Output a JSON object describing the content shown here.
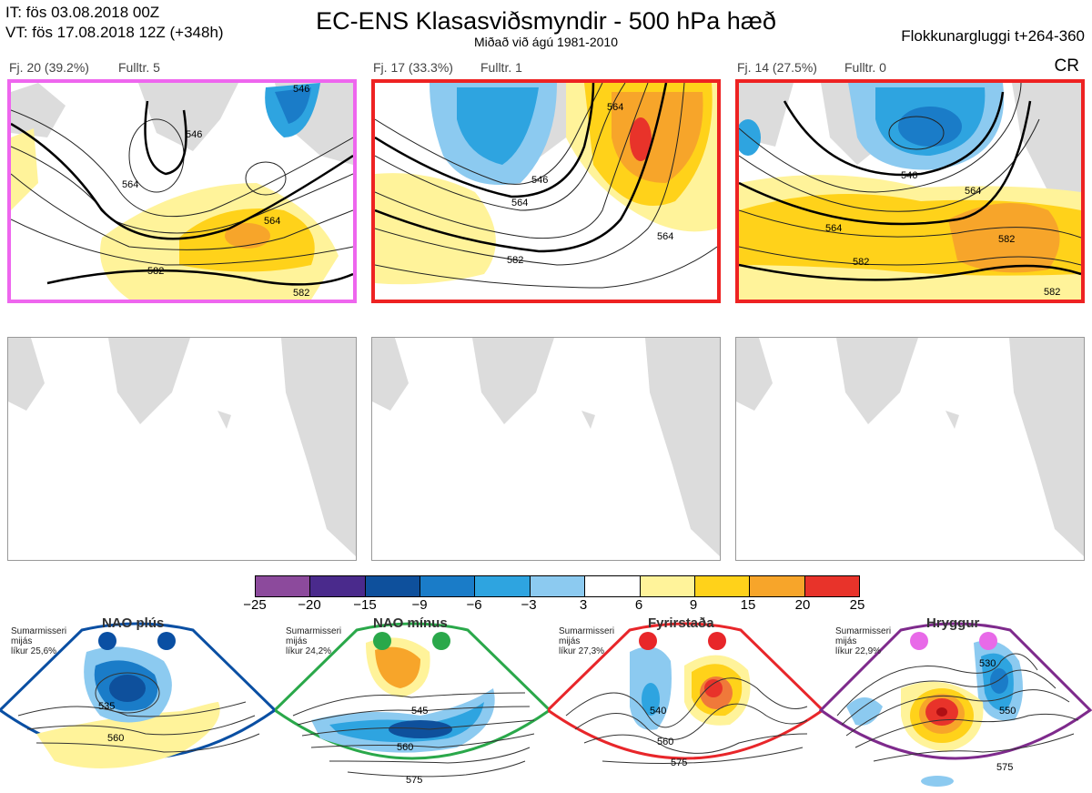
{
  "header": {
    "it_line": "IT: fös 03.08.2018 00Z",
    "vt_line": "VT: fös 17.08.2018 12Z  (+348h)",
    "title": "EC-ENS Klasasviðsmyndir - 500 hPa hæð",
    "subtitle": "Miðað við ágú 1981-2010",
    "window": "Flokkunargluggi t+264-360",
    "corner": "CR"
  },
  "panels": [
    {
      "label": "Fj. 20 (39.2%)",
      "rep": "Fulltr. 5",
      "border_color": "#ee66ee",
      "contours": [
        "546",
        "546",
        "564",
        "564",
        "582",
        "582"
      ]
    },
    {
      "label": "Fj. 17 (33.3%)",
      "rep": "Fulltr. 1",
      "border_color": "#ee2222",
      "contours": [
        "546",
        "564",
        "564",
        "564",
        "582"
      ]
    },
    {
      "label": "Fj. 14 (27.5%)",
      "rep": "Fulltr. 0",
      "border_color": "#ee2222",
      "contours": [
        "546",
        "564",
        "564",
        "582",
        "582",
        "582"
      ]
    }
  ],
  "colorbar": {
    "colors": [
      "#8c4a9c",
      "#4a2a8c",
      "#0e509c",
      "#1a7cc8",
      "#2ea4e0",
      "#8ccaf0",
      "#ffffff",
      "#fff39a",
      "#ffd21a",
      "#f7a52a",
      "#f0793a",
      "#e8332a",
      "#b00f14"
    ],
    "ticks": [
      "−25",
      "−20",
      "−15",
      "−9",
      "−6",
      "−3",
      "3",
      "6",
      "9",
      "15",
      "20",
      "25"
    ]
  },
  "regimes": [
    {
      "name": "NAO plús",
      "color": "#0a4fa3",
      "info": [
        "Sumarmisseri",
        "mijás",
        "líkur 25,6%"
      ],
      "contours": [
        "535",
        "560"
      ]
    },
    {
      "name": "NAO mínus",
      "color": "#2aa84a",
      "info": [
        "Sumarmisseri",
        "mijás",
        "líkur 24,2%"
      ],
      "contours": [
        "545",
        "560",
        "575"
      ]
    },
    {
      "name": "Fyrirstaða",
      "color": "#e8262a",
      "info": [
        "Sumarmisseri",
        "mijás",
        "líkur 27,3%"
      ],
      "contours": [
        "540",
        "560",
        "575"
      ]
    },
    {
      "name": "Hryggur",
      "color": "#e86ae8",
      "info": [
        "Sumarmisseri",
        "mijás",
        "líkur 22,9%"
      ],
      "contours": [
        "530",
        "550",
        "575"
      ]
    }
  ]
}
